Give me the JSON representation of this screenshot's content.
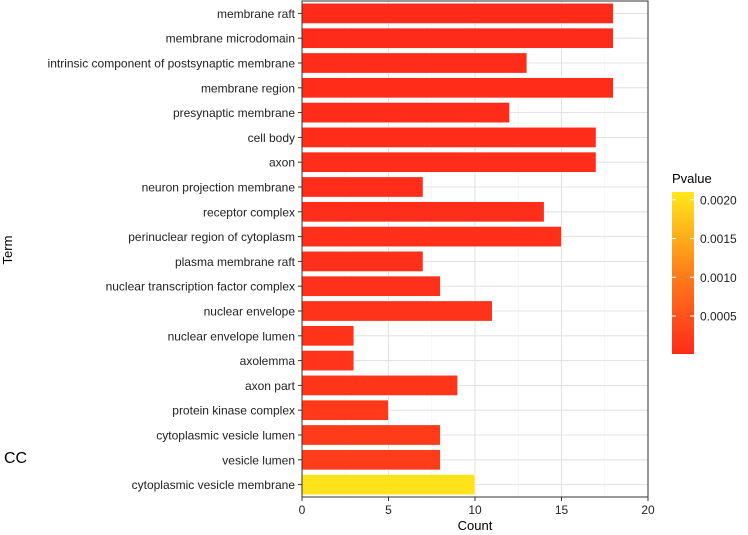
{
  "panel_label": "CC",
  "chart_data": {
    "type": "bar",
    "orientation": "horizontal",
    "title": "",
    "xlabel": "Count",
    "ylabel": "Term",
    "xlim": [
      0,
      20
    ],
    "xticks": [
      0,
      5,
      10,
      15,
      20
    ],
    "grid": true,
    "categories": [
      "membrane raft",
      "membrane microdomain",
      "intrinsic component of postsynaptic membrane",
      "membrane region",
      "presynaptic membrane",
      "cell body",
      "axon",
      "neuron projection membrane",
      "receptor complex",
      "perinuclear region of cytoplasm",
      "plasma membrane raft",
      "nuclear transcription factor complex",
      "nuclear envelope",
      "nuclear envelope lumen",
      "axolemma",
      "axon part",
      "protein kinase complex",
      "cytoplasmic vesicle lumen",
      "vesicle lumen",
      "cytoplasmic vesicle membrane"
    ],
    "values": [
      18,
      18,
      13,
      18,
      12,
      17,
      17,
      7,
      14,
      15,
      7,
      8,
      11,
      3,
      3,
      9,
      5,
      8,
      8,
      10
    ],
    "pvalues": [
      2e-05,
      2e-05,
      3e-05,
      3e-05,
      4e-05,
      4e-05,
      5e-05,
      5e-05,
      6e-05,
      7e-05,
      8e-05,
      0.0001,
      0.00011,
      0.00012,
      0.00013,
      0.00015,
      0.0002,
      0.00022,
      0.00024,
      0.00205
    ],
    "legend": {
      "title": "Pvalue",
      "position": "right",
      "ticks": [
        "0.0020",
        "0.0015",
        "0.0010",
        "0.0005"
      ],
      "tick_values": [
        0.002,
        0.0015,
        0.001,
        0.0005
      ],
      "range": [
        1e-05,
        0.0021
      ],
      "color_low": "#ff2a1a",
      "color_mid": "#ff7f1a",
      "color_high": "#ffe81a"
    }
  }
}
